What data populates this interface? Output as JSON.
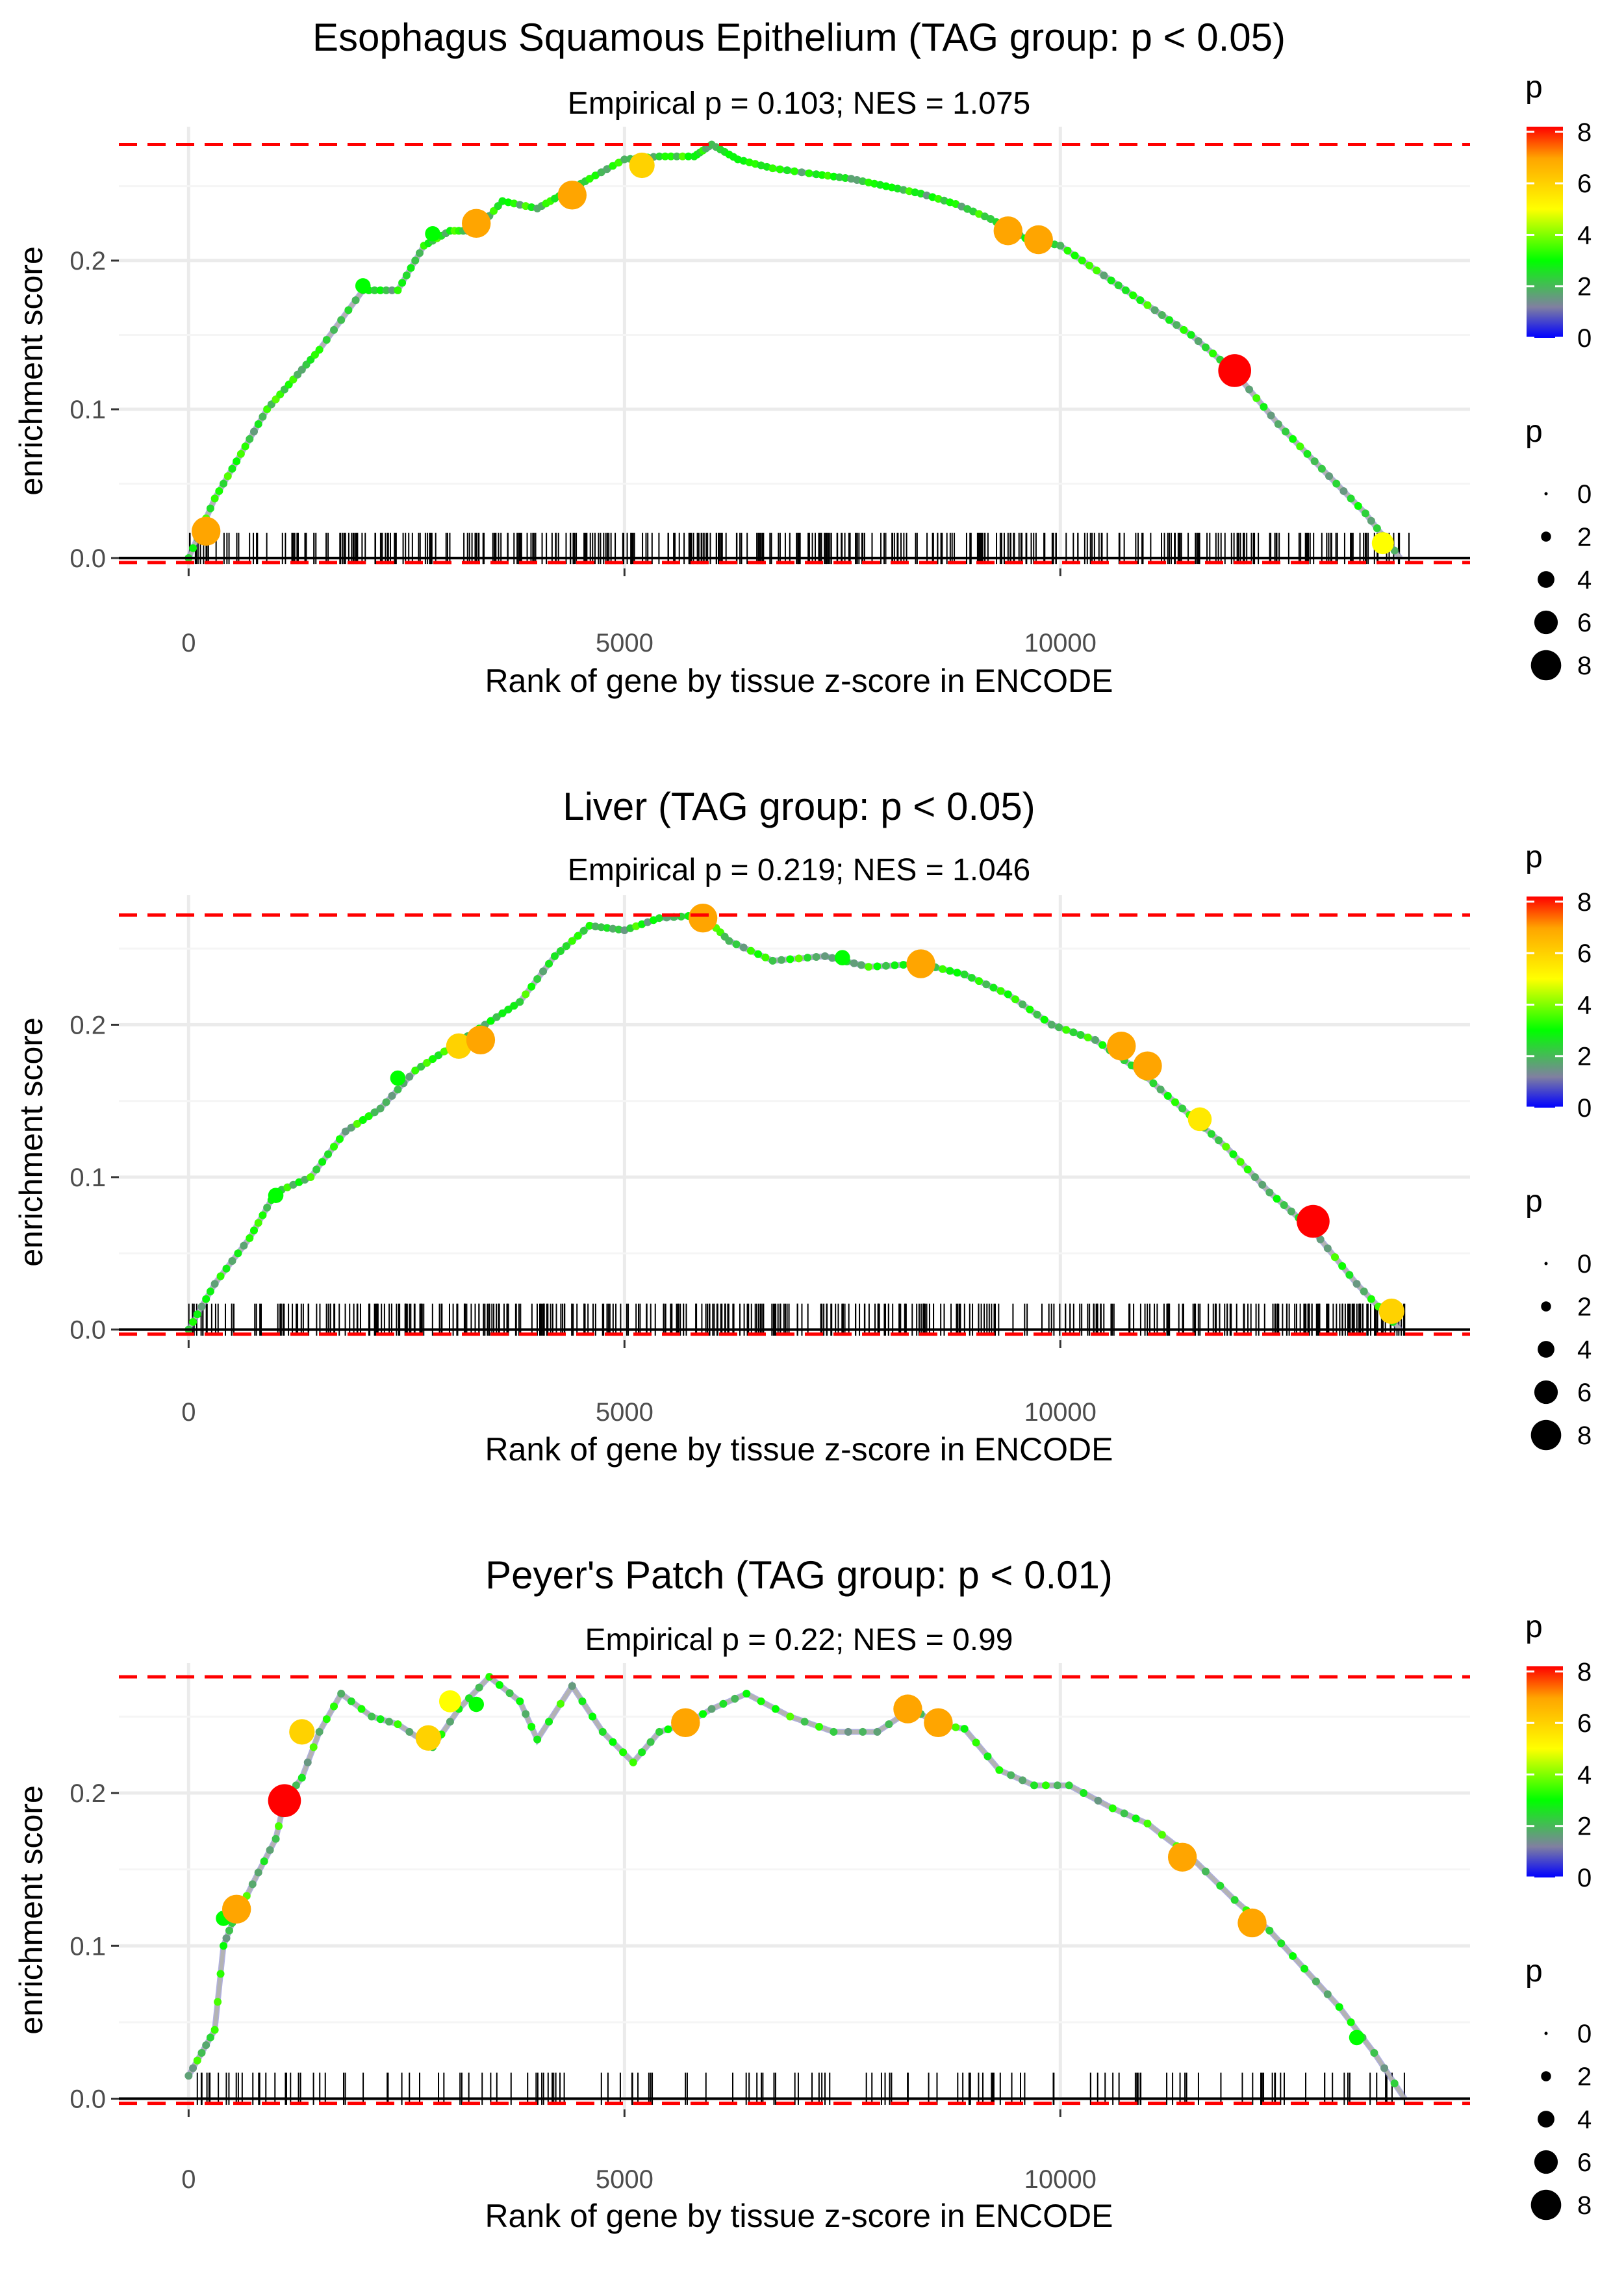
{
  "common": {
    "xlabel": "Rank of gene by tissue z-score in ENCODE",
    "ylabel": "enrichment score",
    "x_ticks": [
      0,
      5000,
      10000
    ],
    "y_ticks": [
      0.0,
      0.1,
      0.2
    ],
    "y_tick_labels": [
      "0.0",
      "0.1",
      "0.2"
    ],
    "colors": {
      "dashed_line": "#ff0000",
      "curve": "#b3b3b3",
      "gridline": "#ebebeb",
      "axis_line": "#000000"
    }
  },
  "legend": {
    "color_title": "p",
    "color_ticks": [
      0,
      2,
      4,
      6,
      8
    ],
    "color_scale": [
      "#0000ff",
      "#8080a0",
      "#00ff00",
      "#ffff00",
      "#ffa500",
      "#ff0000"
    ],
    "size_title": "p",
    "size_values": [
      0,
      2,
      4,
      6,
      8
    ]
  },
  "chart_data": [
    {
      "type": "line",
      "title": "Esophagus Squamous Epithelium (TAG group: p < 0.05)",
      "subtitle": "Empirical p = 0.103; NES = 1.075",
      "xlabel": "Rank of gene by tissue z-score in ENCODE",
      "ylabel": "enrichment score",
      "xlim": [
        -800,
        14700
      ],
      "ylim": [
        -0.007,
        0.29
      ],
      "max_es": 0.278,
      "min_es": -0.003,
      "n_genes": 14000,
      "curve": {
        "x": [
          0,
          300,
          600,
          900,
          1200,
          1500,
          2000,
          2400,
          2700,
          3000,
          3300,
          3600,
          4000,
          4300,
          4600,
          5000,
          5400,
          5800,
          6000,
          6300,
          6700,
          7200,
          7600,
          8000,
          8400,
          8800,
          9200,
          9600,
          10000,
          10500,
          11000,
          11500,
          12000,
          12500,
          13000,
          13500,
          13900
        ],
        "y": [
          0.0,
          0.04,
          0.07,
          0.1,
          0.12,
          0.14,
          0.18,
          0.18,
          0.21,
          0.22,
          0.22,
          0.24,
          0.235,
          0.245,
          0.255,
          0.268,
          0.27,
          0.27,
          0.278,
          0.268,
          0.262,
          0.258,
          0.255,
          0.25,
          0.245,
          0.238,
          0.228,
          0.215,
          0.21,
          0.19,
          0.17,
          0.15,
          0.125,
          0.09,
          0.06,
          0.03,
          0.0
        ]
      },
      "highlight_points": [
        {
          "x": 200,
          "y": 0.018,
          "p": 7
        },
        {
          "x": 2000,
          "y": 0.183,
          "p": 3
        },
        {
          "x": 2800,
          "y": 0.218,
          "p": 3
        },
        {
          "x": 3300,
          "y": 0.225,
          "p": 7
        },
        {
          "x": 4400,
          "y": 0.244,
          "p": 7
        },
        {
          "x": 5200,
          "y": 0.264,
          "p": 6
        },
        {
          "x": 9400,
          "y": 0.22,
          "p": 7
        },
        {
          "x": 9750,
          "y": 0.214,
          "p": 7
        },
        {
          "x": 12000,
          "y": 0.126,
          "p": 8.2
        },
        {
          "x": 13700,
          "y": 0.01,
          "p": 5
        }
      ],
      "rug_density": 420
    },
    {
      "type": "line",
      "title": "Liver (TAG group: p < 0.05)",
      "subtitle": "Empirical p = 0.219; NES = 1.046",
      "xlabel": "Rank of gene by tissue z-score in ENCODE",
      "ylabel": "enrichment score",
      "xlim": [
        -800,
        14700
      ],
      "ylim": [
        -0.007,
        0.285
      ],
      "max_es": 0.272,
      "min_es": -0.003,
      "n_genes": 14000,
      "curve": {
        "x": [
          0,
          300,
          700,
          1000,
          1400,
          1800,
          2200,
          2600,
          3000,
          3400,
          3800,
          4200,
          4600,
          5000,
          5400,
          5900,
          6200,
          6700,
          7300,
          7800,
          8400,
          8900,
          9400,
          9900,
          10400,
          10900,
          11400,
          11900,
          12400,
          12900,
          13400,
          13900
        ],
        "y": [
          0.0,
          0.03,
          0.06,
          0.09,
          0.1,
          0.13,
          0.145,
          0.17,
          0.185,
          0.2,
          0.215,
          0.245,
          0.265,
          0.262,
          0.27,
          0.272,
          0.255,
          0.242,
          0.245,
          0.238,
          0.24,
          0.233,
          0.22,
          0.2,
          0.19,
          0.17,
          0.145,
          0.12,
          0.09,
          0.065,
          0.03,
          0.0
        ]
      },
      "highlight_points": [
        {
          "x": 1000,
          "y": 0.088,
          "p": 3
        },
        {
          "x": 2400,
          "y": 0.165,
          "p": 3
        },
        {
          "x": 3100,
          "y": 0.186,
          "p": 6
        },
        {
          "x": 3350,
          "y": 0.19,
          "p": 7
        },
        {
          "x": 5900,
          "y": 0.27,
          "p": 7
        },
        {
          "x": 7500,
          "y": 0.244,
          "p": 3
        },
        {
          "x": 8400,
          "y": 0.24,
          "p": 7
        },
        {
          "x": 10700,
          "y": 0.186,
          "p": 7
        },
        {
          "x": 11000,
          "y": 0.173,
          "p": 7
        },
        {
          "x": 11600,
          "y": 0.138,
          "p": 5.5
        },
        {
          "x": 12900,
          "y": 0.071,
          "p": 8.2
        },
        {
          "x": 13800,
          "y": 0.012,
          "p": 6
        }
      ],
      "rug_density": 440
    },
    {
      "type": "line",
      "title": "Peyer's Patch (TAG group: p < 0.01)",
      "subtitle": "Empirical p = 0.22; NES = 0.99",
      "xlabel": "Rank of gene by tissue z-score in ENCODE",
      "ylabel": "enrichment score",
      "xlim": [
        -800,
        14700
      ],
      "ylim": [
        -0.007,
        0.285
      ],
      "max_es": 0.276,
      "min_es": -0.003,
      "n_genes": 14000,
      "curve": {
        "x": [
          0,
          150,
          300,
          400,
          500,
          600,
          800,
          1000,
          1100,
          1300,
          1500,
          1750,
          2100,
          2400,
          2800,
          3100,
          3450,
          3800,
          4000,
          4400,
          4750,
          5100,
          5400,
          5700,
          6000,
          6400,
          6900,
          7400,
          7900,
          8300,
          8600,
          8900,
          9300,
          9700,
          10100,
          10600,
          11000,
          11500,
          12000,
          12400,
          12800,
          13200,
          13600,
          13950
        ],
        "y": [
          0.015,
          0.03,
          0.045,
          0.1,
          0.115,
          0.125,
          0.148,
          0.17,
          0.195,
          0.21,
          0.24,
          0.265,
          0.25,
          0.245,
          0.23,
          0.255,
          0.276,
          0.26,
          0.235,
          0.27,
          0.24,
          0.22,
          0.24,
          0.245,
          0.255,
          0.265,
          0.25,
          0.24,
          0.24,
          0.255,
          0.245,
          0.242,
          0.215,
          0.205,
          0.205,
          0.19,
          0.18,
          0.158,
          0.13,
          0.11,
          0.085,
          0.06,
          0.03,
          0.0
        ]
      },
      "highlight_points": [
        {
          "x": 400,
          "y": 0.118,
          "p": 3
        },
        {
          "x": 550,
          "y": 0.124,
          "p": 7
        },
        {
          "x": 1100,
          "y": 0.195,
          "p": 8.2
        },
        {
          "x": 1300,
          "y": 0.24,
          "p": 6
        },
        {
          "x": 2750,
          "y": 0.236,
          "p": 6
        },
        {
          "x": 3000,
          "y": 0.26,
          "p": 5
        },
        {
          "x": 3300,
          "y": 0.258,
          "p": 3
        },
        {
          "x": 5700,
          "y": 0.246,
          "p": 7
        },
        {
          "x": 8250,
          "y": 0.255,
          "p": 7
        },
        {
          "x": 8600,
          "y": 0.246,
          "p": 7
        },
        {
          "x": 11400,
          "y": 0.158,
          "p": 7
        },
        {
          "x": 12200,
          "y": 0.115,
          "p": 7
        },
        {
          "x": 13400,
          "y": 0.04,
          "p": 3
        }
      ],
      "rug_density": 150
    }
  ]
}
